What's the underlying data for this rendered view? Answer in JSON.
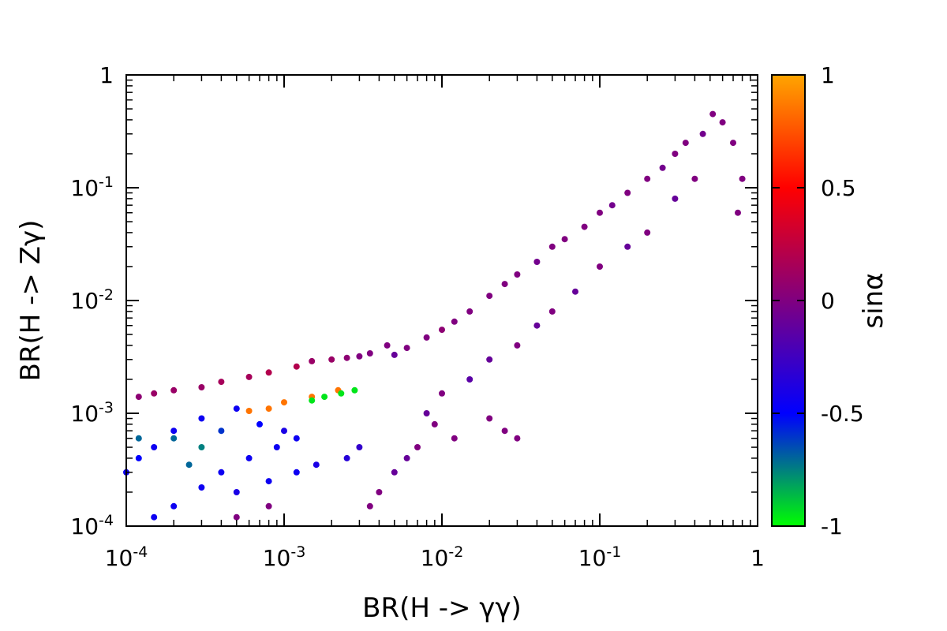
{
  "chart_data": {
    "type": "scatter",
    "title": "",
    "xlabel": "BR(H -> γγ)",
    "ylabel": "BR(H -> Zγ)",
    "x_scale": "log",
    "y_scale": "log",
    "xlim": [
      0.0001,
      1
    ],
    "ylim": [
      0.0001,
      1
    ],
    "x_ticks": [
      {
        "value": 0.0001,
        "base": "10",
        "exp": "-4"
      },
      {
        "value": 0.001,
        "base": "10",
        "exp": "-3"
      },
      {
        "value": 0.01,
        "base": "10",
        "exp": "-2"
      },
      {
        "value": 0.1,
        "base": "10",
        "exp": "-1"
      },
      {
        "value": 1,
        "base": "1",
        "exp": ""
      }
    ],
    "y_ticks": [
      {
        "value": 0.0001,
        "base": "10",
        "exp": "-4"
      },
      {
        "value": 0.001,
        "base": "10",
        "exp": "-3"
      },
      {
        "value": 0.01,
        "base": "10",
        "exp": "-2"
      },
      {
        "value": 0.1,
        "base": "10",
        "exp": "-1"
      },
      {
        "value": 1,
        "base": "1",
        "exp": ""
      }
    ],
    "grid": false,
    "colorbar": {
      "label": "sinα",
      "range": [
        -1,
        1
      ],
      "ticks": [
        {
          "value": 1,
          "label": "1"
        },
        {
          "value": 0.5,
          "label": "0.5"
        },
        {
          "value": 0,
          "label": "0"
        },
        {
          "value": -0.5,
          "label": "-0.5"
        },
        {
          "value": -1,
          "label": "-1"
        }
      ],
      "colormap": [
        "#00ff00",
        "#0000ff",
        "#800080",
        "#ff0000",
        "#ffa500"
      ]
    },
    "points": [
      [
        0.52,
        0.45,
        0.0
      ],
      [
        0.6,
        0.38,
        0.0
      ],
      [
        0.45,
        0.3,
        -0.05
      ],
      [
        0.7,
        0.25,
        0.0
      ],
      [
        0.8,
        0.12,
        0.0
      ],
      [
        0.75,
        0.06,
        0.0
      ],
      [
        0.35,
        0.25,
        0.0
      ],
      [
        0.3,
        0.2,
        0.0
      ],
      [
        0.25,
        0.15,
        -0.05
      ],
      [
        0.2,
        0.12,
        0.0
      ],
      [
        0.15,
        0.09,
        0.0
      ],
      [
        0.12,
        0.07,
        -0.05
      ],
      [
        0.1,
        0.06,
        0.0
      ],
      [
        0.08,
        0.045,
        0.0
      ],
      [
        0.06,
        0.035,
        0.0
      ],
      [
        0.05,
        0.03,
        0.0
      ],
      [
        0.04,
        0.022,
        -0.05
      ],
      [
        0.03,
        0.017,
        0.0
      ],
      [
        0.025,
        0.014,
        0.0
      ],
      [
        0.02,
        0.011,
        0.0
      ],
      [
        0.015,
        0.008,
        0.0
      ],
      [
        0.012,
        0.0065,
        0.0
      ],
      [
        0.01,
        0.0055,
        0.05
      ],
      [
        0.008,
        0.0047,
        0.0
      ],
      [
        0.006,
        0.0038,
        0.0
      ],
      [
        0.005,
        0.0033,
        -0.1
      ],
      [
        0.0045,
        0.004,
        0.0
      ],
      [
        0.4,
        0.12,
        0.0
      ],
      [
        0.3,
        0.08,
        -0.1
      ],
      [
        0.2,
        0.04,
        0.0
      ],
      [
        0.15,
        0.03,
        -0.1
      ],
      [
        0.1,
        0.02,
        0.0
      ],
      [
        0.07,
        0.012,
        -0.1
      ],
      [
        0.05,
        0.008,
        0.0
      ],
      [
        0.04,
        0.006,
        -0.1
      ],
      [
        0.03,
        0.004,
        0.0
      ],
      [
        0.02,
        0.003,
        -0.1
      ],
      [
        0.015,
        0.002,
        -0.15
      ],
      [
        0.01,
        0.0015,
        0.0
      ],
      [
        0.008,
        0.001,
        -0.1
      ],
      [
        0.009,
        0.0008,
        0.0
      ],
      [
        0.012,
        0.0006,
        0.0
      ],
      [
        0.007,
        0.0005,
        0.0
      ],
      [
        0.006,
        0.0004,
        -0.1
      ],
      [
        0.005,
        0.0003,
        -0.1
      ],
      [
        0.004,
        0.0002,
        0.0
      ],
      [
        0.0035,
        0.00015,
        0.0
      ],
      [
        0.025,
        0.0007,
        0.0
      ],
      [
        0.03,
        0.0006,
        0.0
      ],
      [
        0.02,
        0.0009,
        0.0
      ],
      [
        0.0012,
        0.0026,
        0.2
      ],
      [
        0.0008,
        0.0023,
        0.2
      ],
      [
        0.0006,
        0.0021,
        0.15
      ],
      [
        0.0004,
        0.0019,
        0.15
      ],
      [
        0.0003,
        0.0017,
        0.1
      ],
      [
        0.0002,
        0.0016,
        0.1
      ],
      [
        0.00015,
        0.0015,
        0.1
      ],
      [
        0.00012,
        0.0014,
        0.05
      ],
      [
        0.0015,
        0.0029,
        0.1
      ],
      [
        0.002,
        0.003,
        0.1
      ],
      [
        0.0025,
        0.0031,
        0.05
      ],
      [
        0.003,
        0.0032,
        0.0
      ],
      [
        0.0035,
        0.0034,
        0.0
      ],
      [
        0.0022,
        0.0016,
        0.85
      ],
      [
        0.0015,
        0.0014,
        0.85
      ],
      [
        0.001,
        0.00125,
        0.85
      ],
      [
        0.0008,
        0.0011,
        0.85
      ],
      [
        0.0006,
        0.00105,
        0.85
      ],
      [
        0.0028,
        0.0016,
        -0.95
      ],
      [
        0.0023,
        0.0015,
        -0.95
      ],
      [
        0.0018,
        0.0014,
        -0.95
      ],
      [
        0.0015,
        0.0013,
        -0.95
      ],
      [
        0.0005,
        0.0011,
        -0.45
      ],
      [
        0.0003,
        0.0009,
        -0.45
      ],
      [
        0.0002,
        0.0007,
        -0.45
      ],
      [
        0.00015,
        0.0005,
        -0.45
      ],
      [
        0.00012,
        0.0004,
        -0.5
      ],
      [
        0.0001,
        0.0003,
        -0.45
      ],
      [
        0.0004,
        0.0007,
        -0.6
      ],
      [
        0.0007,
        0.0008,
        -0.5
      ],
      [
        0.001,
        0.0007,
        -0.4
      ],
      [
        0.0012,
        0.0006,
        -0.45
      ],
      [
        0.0009,
        0.0005,
        -0.45
      ],
      [
        0.0006,
        0.0004,
        -0.45
      ],
      [
        0.0004,
        0.0003,
        -0.45
      ],
      [
        0.0003,
        0.00022,
        -0.45
      ],
      [
        0.0002,
        0.00015,
        -0.45
      ],
      [
        0.00015,
        0.00012,
        -0.45
      ],
      [
        0.0005,
        0.0002,
        -0.4
      ],
      [
        0.0008,
        0.00025,
        -0.45
      ],
      [
        0.0012,
        0.0003,
        -0.45
      ],
      [
        0.0016,
        0.00035,
        -0.4
      ],
      [
        0.0025,
        0.0004,
        -0.35
      ],
      [
        0.003,
        0.0005,
        -0.3
      ],
      [
        0.0002,
        0.0006,
        -0.7
      ],
      [
        0.0003,
        0.0005,
        -0.75
      ],
      [
        0.00025,
        0.00035,
        -0.7
      ],
      [
        0.00012,
        0.0006,
        -0.7
      ],
      [
        0.0005,
        0.00012,
        0.0
      ],
      [
        0.0008,
        0.00015,
        0.0
      ]
    ]
  }
}
